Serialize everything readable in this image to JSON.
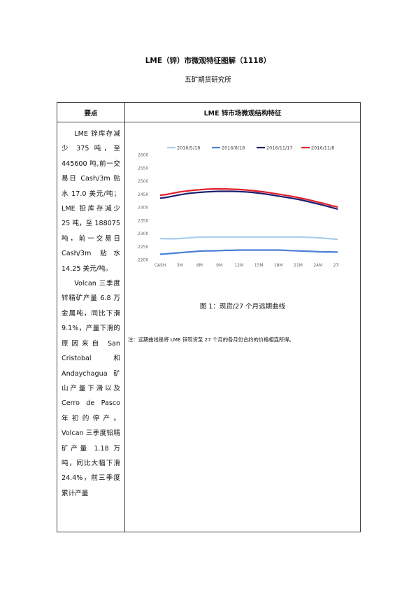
{
  "doc": {
    "title": "LME（锌）市微观特征图解（1118）",
    "subtitle": "五矿期货研究所"
  },
  "table": {
    "header_left": "要点",
    "header_right": "LME 锌市场微观结构特征",
    "paragraph1": "LME 锌库存减少 375 吨，至 445600 吨,前一交易日 Cash/3m 贴水 17.0 美元/吨；LME 铅库存减少 25 吨，至 188075 吨，前一交易日 Cash/3m 贴水 14.25 美元/吨。",
    "paragraph2": "Volcan 三季度锌精矿产量 6.8 万金属吨，同比下滑 9.1%，产量下滑的原因来自 San Cristobal 和 Andaychagua 矿山产量下滑以及 Cerro de Pasco 年初的停产。Volcan 三季度铅精矿产量 1.18 万吨，同比大幅下滑 24.4%，前三季度累计产量"
  },
  "figure": {
    "caption": "图 1：现货/27 个月远期曲线",
    "note": "注：远期曲线是将 LME 锌现货至 27 个月的各月份合约的价格相连所得。"
  },
  "chart_data": {
    "type": "line",
    "title": "",
    "xlabel": "",
    "ylabel": "",
    "x_tick_labels": [
      "CASH",
      "3M",
      "6M",
      "9M",
      "12M",
      "15M",
      "18M",
      "21M",
      "24M",
      "27M"
    ],
    "y_tick_labels": [
      "2600",
      "2550",
      "2500",
      "2450",
      "2400",
      "2350",
      "2300",
      "2250",
      "2200"
    ],
    "ylim": [
      2200,
      2600
    ],
    "grid": false,
    "legend_position": "top",
    "series": [
      {
        "name": "2016/5/18",
        "color": "#a9cdef",
        "values": [
          2280,
          2279,
          2279,
          2280,
          2282,
          2284,
          2285,
          2286,
          2286,
          2286,
          2286,
          2286,
          2286,
          2286,
          2286,
          2286,
          2286,
          2286,
          2286,
          2286,
          2286,
          2286,
          2285,
          2284,
          2283,
          2281,
          2279,
          2277
        ]
      },
      {
        "name": "2016/8/18",
        "color": "#4a7fd6",
        "values": [
          2220,
          2222,
          2224,
          2226,
          2228,
          2230,
          2232,
          2233,
          2233,
          2234,
          2235,
          2235,
          2236,
          2236,
          2236,
          2236,
          2236,
          2236,
          2236,
          2235,
          2234,
          2233,
          2232,
          2231,
          2230,
          2229,
          2229,
          2228
        ]
      },
      {
        "name": "2016/11/17",
        "color": "#1b1f6e",
        "values": [
          2434,
          2437,
          2442,
          2447,
          2451,
          2454,
          2456,
          2458,
          2459,
          2460,
          2460,
          2460,
          2459,
          2458,
          2456,
          2453,
          2450,
          2446,
          2442,
          2438,
          2434,
          2429,
          2424,
          2418,
          2412,
          2406,
          2399,
          2392
        ]
      },
      {
        "name": "2016/11/8",
        "color": "#e0202b",
        "values": [
          2445,
          2448,
          2453,
          2458,
          2461,
          2464,
          2466,
          2468,
          2469,
          2469,
          2469,
          2468,
          2467,
          2465,
          2463,
          2460,
          2457,
          2453,
          2449,
          2445,
          2441,
          2436,
          2431,
          2425,
          2419,
          2413,
          2406,
          2400
        ]
      }
    ]
  }
}
